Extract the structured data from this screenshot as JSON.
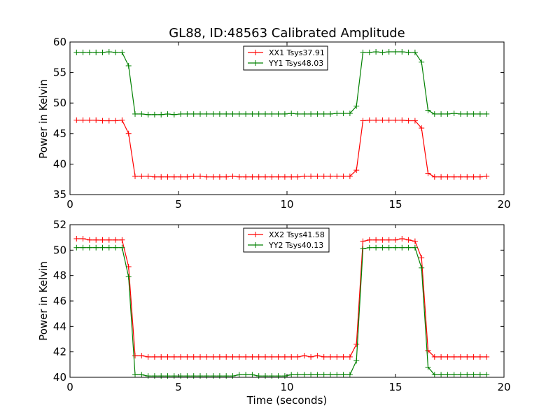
{
  "chart_data": [
    {
      "type": "line",
      "title": "GL88, ID:48563 Calibrated Amplitude",
      "xlabel": "",
      "ylabel": "Power in Kelvin",
      "xlim": [
        0,
        20
      ],
      "ylim": [
        35,
        60
      ],
      "xticks": [
        "0",
        "5",
        "10",
        "15",
        "20"
      ],
      "yticks": [
        "35",
        "40",
        "45",
        "50",
        "55",
        "60"
      ],
      "legend_position": "top-center",
      "x": [
        0.3,
        0.6,
        0.9,
        1.2,
        1.5,
        1.8,
        2.1,
        2.4,
        2.7,
        3.0,
        3.3,
        3.6,
        3.9,
        4.2,
        4.5,
        4.8,
        5.1,
        5.4,
        5.7,
        6.0,
        6.3,
        6.6,
        6.9,
        7.2,
        7.5,
        7.8,
        8.1,
        8.4,
        8.7,
        9.0,
        9.3,
        9.6,
        9.9,
        10.2,
        10.5,
        10.8,
        11.1,
        11.4,
        11.7,
        12.0,
        12.3,
        12.6,
        12.9,
        13.2,
        13.5,
        13.8,
        14.1,
        14.4,
        14.7,
        15.0,
        15.3,
        15.6,
        15.9,
        16.2,
        16.5,
        16.8,
        17.1,
        17.4,
        17.7,
        18.0,
        18.3,
        18.6,
        18.9,
        19.2
      ],
      "series": [
        {
          "name": "XX1 Tsys37.91",
          "color": "#ff0000",
          "values": [
            47.2,
            47.2,
            47.2,
            47.2,
            47.1,
            47.1,
            47.1,
            47.2,
            45.0,
            38.0,
            38.0,
            38.0,
            37.9,
            37.9,
            37.9,
            37.9,
            37.9,
            37.9,
            38.0,
            38.0,
            37.9,
            37.9,
            37.9,
            37.9,
            38.0,
            37.9,
            37.9,
            37.9,
            37.9,
            37.9,
            37.9,
            37.9,
            37.9,
            37.9,
            37.9,
            38.0,
            38.0,
            38.0,
            38.0,
            38.0,
            38.0,
            38.0,
            38.0,
            39.0,
            47.1,
            47.2,
            47.2,
            47.2,
            47.2,
            47.2,
            47.2,
            47.1,
            47.1,
            45.9,
            38.5,
            37.9,
            37.9,
            37.9,
            37.9,
            37.9,
            37.9,
            37.9,
            37.9,
            38.0
          ]
        },
        {
          "name": "YY1 Tsys48.03",
          "color": "#008000",
          "values": [
            58.3,
            58.3,
            58.3,
            58.3,
            58.3,
            58.4,
            58.3,
            58.3,
            56.1,
            48.2,
            48.2,
            48.1,
            48.1,
            48.1,
            48.2,
            48.1,
            48.2,
            48.2,
            48.2,
            48.2,
            48.2,
            48.2,
            48.2,
            48.2,
            48.2,
            48.2,
            48.2,
            48.2,
            48.2,
            48.2,
            48.2,
            48.2,
            48.2,
            48.3,
            48.2,
            48.2,
            48.2,
            48.2,
            48.2,
            48.2,
            48.3,
            48.3,
            48.3,
            49.5,
            58.3,
            58.3,
            58.4,
            58.3,
            58.4,
            58.4,
            58.4,
            58.3,
            58.3,
            56.7,
            48.8,
            48.2,
            48.2,
            48.2,
            48.3,
            48.2,
            48.2,
            48.2,
            48.2,
            48.2
          ]
        }
      ]
    },
    {
      "type": "line",
      "title": "",
      "xlabel": "Time (seconds)",
      "ylabel": "Power in Kelvin",
      "xlim": [
        0,
        20
      ],
      "ylim": [
        40,
        52
      ],
      "xticks": [
        "0",
        "5",
        "10",
        "15",
        "20"
      ],
      "yticks": [
        "40",
        "42",
        "44",
        "46",
        "48",
        "50",
        "52"
      ],
      "legend_position": "top-center",
      "x": [
        0.3,
        0.6,
        0.9,
        1.2,
        1.5,
        1.8,
        2.1,
        2.4,
        2.7,
        3.0,
        3.3,
        3.6,
        3.9,
        4.2,
        4.5,
        4.8,
        5.1,
        5.4,
        5.7,
        6.0,
        6.3,
        6.6,
        6.9,
        7.2,
        7.5,
        7.8,
        8.1,
        8.4,
        8.7,
        9.0,
        9.3,
        9.6,
        9.9,
        10.2,
        10.5,
        10.8,
        11.1,
        11.4,
        11.7,
        12.0,
        12.3,
        12.6,
        12.9,
        13.2,
        13.5,
        13.8,
        14.1,
        14.4,
        14.7,
        15.0,
        15.3,
        15.6,
        15.9,
        16.2,
        16.5,
        16.8,
        17.1,
        17.4,
        17.7,
        18.0,
        18.3,
        18.6,
        18.9,
        19.2
      ],
      "series": [
        {
          "name": "XX2 Tsys41.58",
          "color": "#ff0000",
          "values": [
            50.9,
            50.9,
            50.8,
            50.8,
            50.8,
            50.8,
            50.8,
            50.8,
            48.7,
            41.7,
            41.7,
            41.6,
            41.6,
            41.6,
            41.6,
            41.6,
            41.6,
            41.6,
            41.6,
            41.6,
            41.6,
            41.6,
            41.6,
            41.6,
            41.6,
            41.6,
            41.6,
            41.6,
            41.6,
            41.6,
            41.6,
            41.6,
            41.6,
            41.6,
            41.6,
            41.7,
            41.6,
            41.7,
            41.6,
            41.6,
            41.6,
            41.6,
            41.6,
            42.6,
            50.7,
            50.8,
            50.8,
            50.8,
            50.8,
            50.8,
            50.9,
            50.8,
            50.7,
            49.4,
            42.1,
            41.6,
            41.6,
            41.6,
            41.6,
            41.6,
            41.6,
            41.6,
            41.6,
            41.6
          ]
        },
        {
          "name": "YY2 Tsys40.13",
          "color": "#008000",
          "values": [
            50.2,
            50.2,
            50.2,
            50.2,
            50.2,
            50.2,
            50.2,
            50.2,
            47.9,
            40.2,
            40.2,
            40.1,
            40.1,
            40.1,
            40.1,
            40.1,
            40.1,
            40.1,
            40.1,
            40.1,
            40.1,
            40.1,
            40.1,
            40.1,
            40.1,
            40.2,
            40.2,
            40.2,
            40.1,
            40.1,
            40.1,
            40.1,
            40.1,
            40.2,
            40.2,
            40.2,
            40.2,
            40.2,
            40.2,
            40.2,
            40.2,
            40.2,
            40.2,
            41.3,
            50.1,
            50.2,
            50.2,
            50.2,
            50.2,
            50.2,
            50.2,
            50.2,
            50.2,
            48.6,
            40.8,
            40.2,
            40.2,
            40.2,
            40.2,
            40.2,
            40.2,
            40.2,
            40.2,
            40.2
          ]
        }
      ]
    }
  ]
}
